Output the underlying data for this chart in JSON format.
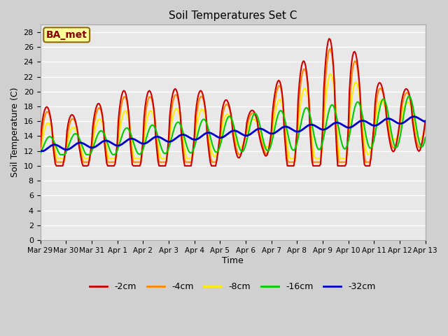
{
  "title": "Soil Temperatures Set C",
  "xlabel": "Time",
  "ylabel": "Soil Temperature (C)",
  "annotation": "BA_met",
  "ylim": [
    0,
    29
  ],
  "yticks": [
    0,
    2,
    4,
    6,
    8,
    10,
    12,
    14,
    16,
    18,
    20,
    22,
    24,
    26,
    28
  ],
  "bg_color": "#e8e8e8",
  "series": {
    "-2cm": {
      "color": "#cc0000",
      "lw": 1.5
    },
    "-4cm": {
      "color": "#ff8800",
      "lw": 1.5
    },
    "-8cm": {
      "color": "#ffee00",
      "lw": 1.5
    },
    "-16cm": {
      "color": "#00cc00",
      "lw": 1.5
    },
    "-32cm": {
      "color": "#0000cc",
      "lw": 2.0
    }
  },
  "x_tick_labels": [
    "Mar 29",
    "Mar 30",
    "Mar 31",
    "Apr 1",
    "Apr 2",
    "Apr 3",
    "Apr 4",
    "Apr 5",
    "Apr 6",
    "Apr 7",
    "Apr 8",
    "Apr 9",
    "Apr 10",
    "Apr 11",
    "Apr 12",
    "Apr 13"
  ],
  "legend_order": [
    "-2cm",
    "-4cm",
    "-8cm",
    "-16cm",
    "-32cm"
  ],
  "figsize": [
    6.4,
    4.8
  ],
  "dpi": 100,
  "annotation_fontsize": 10,
  "annotation_color": "#8b0000",
  "annotation_box_facecolor": "#ffff99",
  "annotation_box_edgecolor": "#8b6914"
}
